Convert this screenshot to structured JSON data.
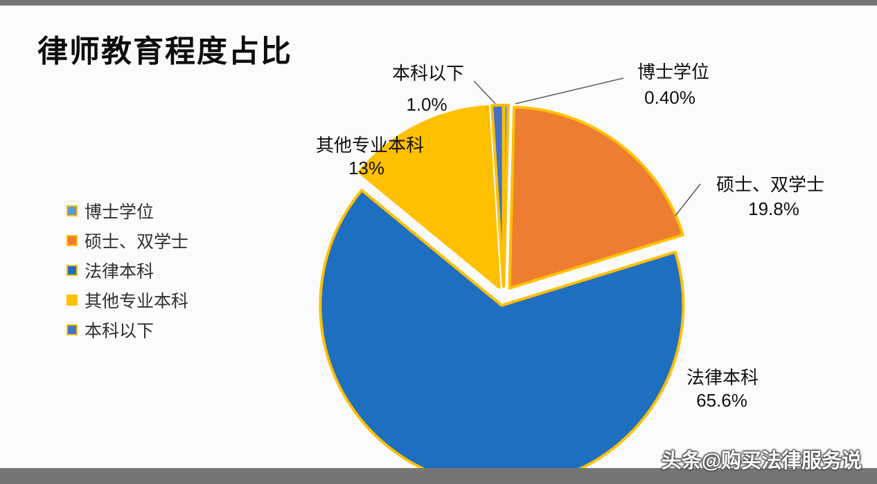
{
  "page": {
    "background": "#fbfbfb",
    "frame_bar_color": "#757575"
  },
  "title": "律师教育程度占比",
  "watermark": "头条@购买法律服务说",
  "chart_data": {
    "type": "pie",
    "title": "律师教育程度占比",
    "direction": "clockwise",
    "start_angle_deg": 0,
    "exploded": true,
    "legend_position": "left",
    "slice_border_color": "#FFC000",
    "leader_line_color": "#595959",
    "categories": [
      "博士学位",
      "硕士、双学士",
      "法律本科",
      "其他专业本科",
      "本科以下"
    ],
    "values": [
      0.4,
      19.8,
      65.6,
      13,
      1.0
    ],
    "value_labels": [
      "0.40%",
      "19.8%",
      "65.6%",
      "13%",
      "1.0%"
    ],
    "colors": [
      "#5B9BD5",
      "#ED7D31",
      "#1F6FC0",
      "#FFC000",
      "#4472C4"
    ]
  }
}
